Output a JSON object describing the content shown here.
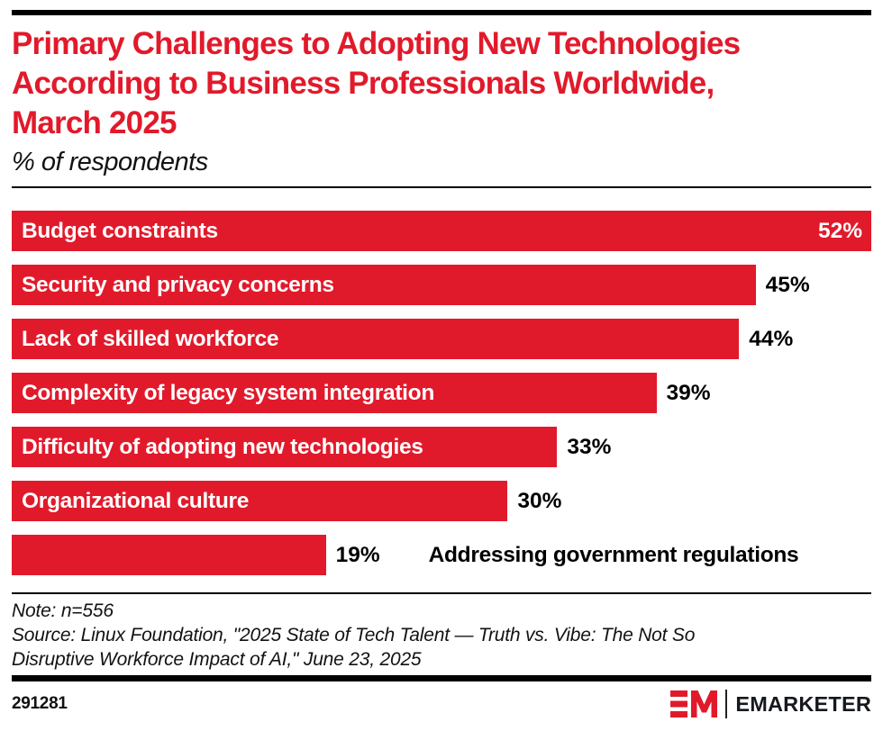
{
  "header": {
    "title": "Primary Challenges to Adopting New Technologies According to Business Professionals Worldwide, March 2025",
    "title_lines": [
      "Primary Challenges to Adopting New Technologies",
      "According to Business Professionals Worldwide,",
      "March 2025"
    ],
    "subtitle": "% of respondents",
    "title_color": "#E11A2B"
  },
  "chart_data": {
    "type": "bar",
    "orientation": "horizontal",
    "title": "Primary Challenges to Adopting New Technologies According to Business Professionals Worldwide, March 2025",
    "unit": "% of respondents",
    "categories": [
      "Budget constraints",
      "Security and privacy concerns",
      "Lack of skilled workforce",
      "Complexity of legacy system integration",
      "Difficulty of adopting new technologies",
      "Organizational culture",
      "Addressing government regulations"
    ],
    "values": [
      52,
      45,
      44,
      39,
      33,
      30,
      19
    ],
    "xlim": [
      0,
      52
    ],
    "grid": false,
    "legend": "none",
    "bar_color": "#E11A2B",
    "label_color_inside_bar": "#FFFFFF",
    "value_label_color": "#000000",
    "bars": [
      {
        "label": "Budget constraints",
        "value": 52,
        "display_value": "52%",
        "label_placement": "inside",
        "value_placement": "inside"
      },
      {
        "label": "Security and privacy concerns",
        "value": 45,
        "display_value": "45%",
        "label_placement": "inside",
        "value_placement": "outside"
      },
      {
        "label": "Lack of skilled workforce",
        "value": 44,
        "display_value": "44%",
        "label_placement": "inside",
        "value_placement": "outside"
      },
      {
        "label": "Complexity of legacy system integration",
        "value": 39,
        "display_value": "39%",
        "label_placement": "inside",
        "value_placement": "outside"
      },
      {
        "label": "Difficulty of adopting new technologies",
        "value": 33,
        "display_value": "33%",
        "label_placement": "inside",
        "value_placement": "outside"
      },
      {
        "label": "Organizational culture",
        "value": 30,
        "display_value": "30%",
        "label_placement": "inside",
        "value_placement": "outside"
      },
      {
        "label": "Addressing government regulations",
        "value": 19,
        "display_value": "19%",
        "label_placement": "outside",
        "value_placement": "outside"
      }
    ]
  },
  "footer": {
    "note": "Note: n=556",
    "source": "Source: Linux Foundation, \"2025 State of Tech Talent — Truth vs. Vibe: The Not So Disruptive Workforce Impact of AI,\" June 23, 2025",
    "source_lines": [
      "Source: Linux Foundation, \"2025 State of Tech Talent — Truth vs. Vibe: The Not So",
      "Disruptive Workforce Impact of AI,\" June 23, 2025"
    ],
    "chart_id": "291281",
    "logo": {
      "monogram": "EM",
      "wordmark": "EMARKETER"
    }
  },
  "colors": {
    "accent_red": "#E11A2B",
    "black": "#000000",
    "white": "#FFFFFF"
  }
}
